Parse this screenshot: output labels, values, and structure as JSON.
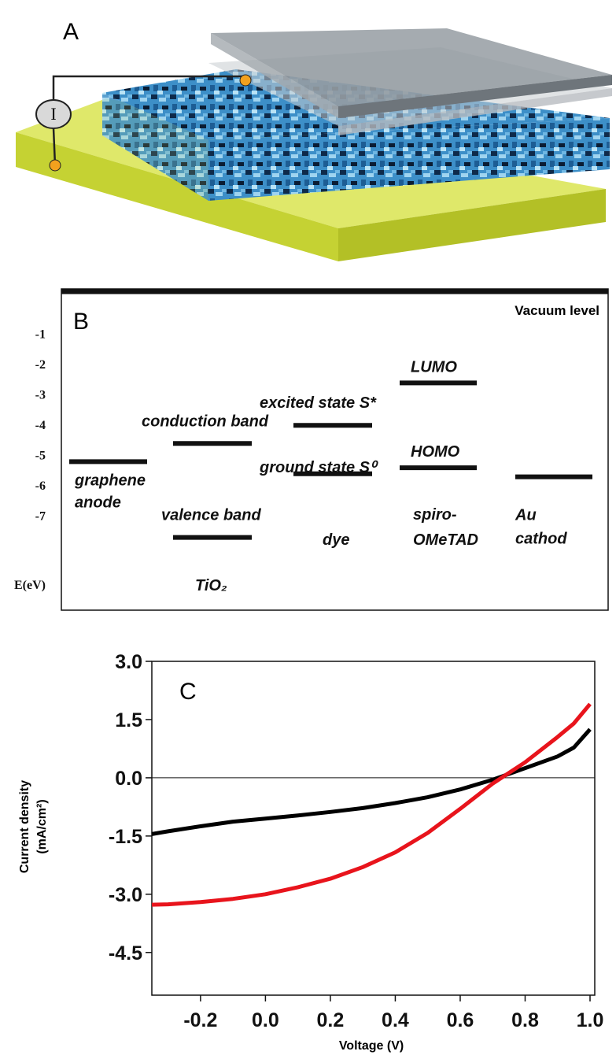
{
  "panel_a": {
    "label": "A",
    "meter": "I"
  },
  "panel_b": {
    "label": "B",
    "vacuum": "Vacuum level",
    "axis_label": "E(eV)",
    "ylim": [
      0.5,
      -10.1
    ],
    "yticks": [
      -1,
      -2,
      -3,
      -4,
      -5,
      -6,
      -7
    ],
    "levels": [
      {
        "energy": -5.2,
        "labels": [
          "graphene",
          "anode"
        ]
      },
      {
        "energy": -4.6,
        "labels": [
          "conduction band"
        ]
      },
      {
        "energy": -7.7,
        "labels": [
          "valence band"
        ]
      },
      {
        "energy": -4.0,
        "labels": [
          "excited state S*"
        ]
      },
      {
        "energy": -5.6,
        "labels": [
          "ground state S⁰"
        ]
      },
      {
        "energy": -2.6,
        "labels": [
          "LUMO"
        ]
      },
      {
        "energy": -5.4,
        "labels": [
          "HOMO"
        ]
      },
      {
        "energy": -5.7,
        "labels": [
          "Au",
          "cathod"
        ]
      }
    ],
    "names": [
      "TiO₂",
      "dye",
      "spiro-",
      "OMeTAD"
    ]
  },
  "chart_data": {
    "type": "line",
    "label": "C",
    "x_label": "Voltage (V)",
    "y_label": [
      "Current density",
      "(mA/cm²)"
    ],
    "x": [
      -0.35,
      -0.3,
      -0.2,
      -0.1,
      0,
      0.1,
      0.2,
      0.3,
      0.4,
      0.5,
      0.6,
      0.7,
      0.8,
      0.9,
      0.95,
      1.0
    ],
    "series": [
      {
        "color": "#000000",
        "values": [
          -1.45,
          -1.38,
          -1.25,
          -1.13,
          -1.05,
          -0.97,
          -0.88,
          -0.78,
          -0.65,
          -0.5,
          -0.3,
          -0.05,
          0.25,
          0.55,
          0.78,
          1.25
        ]
      },
      {
        "color": "#e8141c",
        "values": [
          -3.27,
          -3.26,
          -3.2,
          -3.12,
          -3.0,
          -2.82,
          -2.6,
          -2.3,
          -1.92,
          -1.42,
          -0.8,
          -0.15,
          0.4,
          1.05,
          1.4,
          1.9
        ]
      }
    ],
    "xlim": [
      -0.35,
      1.0
    ],
    "ylim": [
      -5.6,
      3.0
    ],
    "xticks": [
      {
        "value": -0.2,
        "label": "-0.2"
      },
      {
        "value": 0,
        "label": "0.0"
      },
      {
        "value": 0.2,
        "label": "0.2"
      },
      {
        "value": 0.4,
        "label": "0.4"
      },
      {
        "value": 0.6,
        "label": "0.6"
      },
      {
        "value": 0.8,
        "label": "0.8"
      },
      {
        "value": 1.0,
        "label": "1.0"
      }
    ],
    "yticks": [
      {
        "value": 3.0,
        "label": "3.0"
      },
      {
        "value": 1.5,
        "label": "1.5"
      },
      {
        "value": 0,
        "label": "0.0"
      },
      {
        "value": -1.5,
        "label": "-1.5"
      },
      {
        "value": -3.0,
        "label": "-3.0"
      },
      {
        "value": -4.5,
        "label": "-4.5"
      }
    ]
  }
}
